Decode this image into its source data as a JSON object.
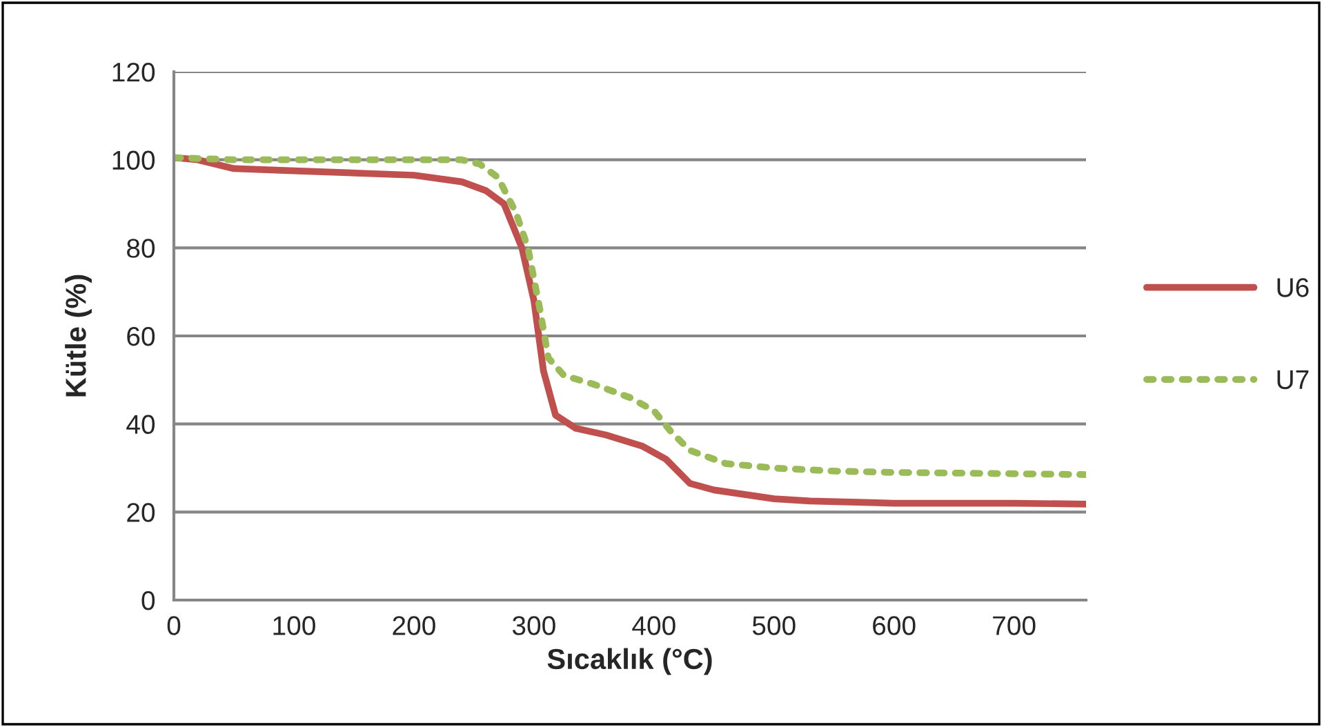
{
  "chart_data": {
    "type": "line",
    "xlabel": "Sıcaklık (°C)",
    "ylabel": "Kütle (%)",
    "xlim": [
      0,
      760
    ],
    "xticks": [
      0,
      100,
      200,
      300,
      400,
      500,
      600,
      700
    ],
    "ylim": [
      0,
      120
    ],
    "yticks": [
      0,
      20,
      40,
      60,
      80,
      100,
      120
    ],
    "grid": "y",
    "legend": "right",
    "series": [
      {
        "name": "U6",
        "color": "#c0504d",
        "line_style": "solid",
        "x": [
          0,
          20,
          50,
          100,
          200,
          240,
          260,
          275,
          290,
          300,
          308,
          318,
          335,
          360,
          390,
          410,
          430,
          450,
          500,
          530,
          600,
          700,
          760
        ],
        "values": [
          100.5,
          100,
          98,
          97.5,
          96.5,
          95,
          93,
          90,
          80,
          68,
          52,
          42,
          39,
          37.5,
          35,
          32,
          26.5,
          25,
          23,
          22.5,
          22,
          22,
          21.8
        ]
      },
      {
        "name": "U7",
        "color": "#9bbb59",
        "line_style": "dotted",
        "x": [
          0,
          50,
          240,
          255,
          270,
          285,
          295,
          305,
          312,
          325,
          350,
          380,
          400,
          415,
          430,
          460,
          500,
          550,
          600,
          700,
          760
        ],
        "values": [
          100.5,
          100,
          100,
          99,
          96,
          88,
          80,
          66,
          55,
          51,
          49,
          46,
          43,
          38,
          34,
          31,
          30,
          29.3,
          29,
          28.7,
          28.5
        ]
      }
    ]
  }
}
